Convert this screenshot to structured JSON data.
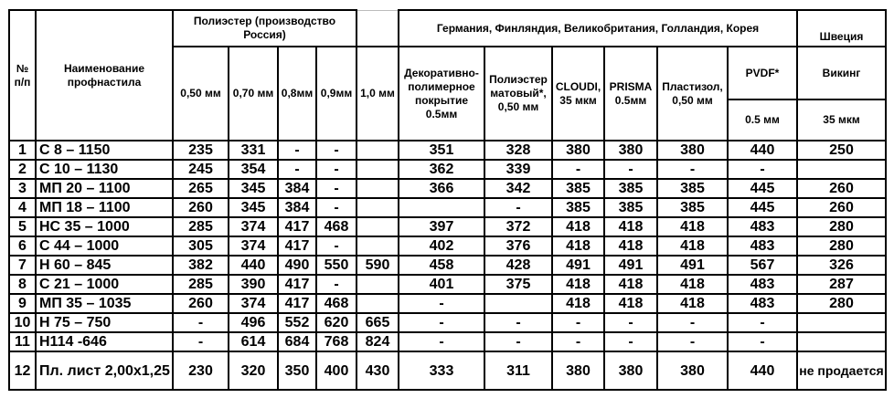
{
  "header": {
    "num": "№ п/п",
    "name": "Наименование профнастила",
    "group_russia": "Полиэстер (производство Россия)",
    "group_import": "Германия, Финляндия, Великобритания, Голландия, Корея",
    "group_sweden": "Швеция",
    "russia_cols": [
      "0,50 мм",
      "0,70 мм",
      "0,8мм",
      "0,9мм",
      "1,0 мм"
    ],
    "import_cols": [
      "Декоративно-полимерное покрытие 0.5мм",
      "Полиэстер матовый*, 0,50 мм",
      "CLOUDI, 35 мкм",
      "PRISMA 0.5мм",
      "Пластизол, 0,50 мм"
    ],
    "pvdf": "PVDF*",
    "pvdf_sub": "0.5 мм",
    "viking": "Викинг",
    "viking_sub": "35 мкм"
  },
  "rows": [
    {
      "n": "1",
      "name": "С 8 – 1150",
      "v": [
        "235",
        "331",
        "-",
        "-",
        "",
        "351",
        "328",
        "380",
        "380",
        "380",
        "440",
        "250"
      ]
    },
    {
      "n": "2",
      "name": "С 10 – 1130",
      "v": [
        "245",
        "354",
        "-",
        "-",
        "",
        "362",
        "339",
        "-",
        "-",
        "-",
        "-",
        ""
      ]
    },
    {
      "n": "3",
      "name": "МП 20 – 1100",
      "v": [
        "265",
        "345",
        "384",
        "-",
        "",
        "366",
        "342",
        "385",
        "385",
        "385",
        "445",
        "260"
      ]
    },
    {
      "n": "4",
      "name": "МП 18 – 1100",
      "v": [
        "260",
        "345",
        "384",
        "-",
        "",
        "",
        "-",
        "385",
        "385",
        "385",
        "445",
        "260"
      ]
    },
    {
      "n": "5",
      "name": "НС 35 – 1000",
      "v": [
        "285",
        "374",
        "417",
        "468",
        "",
        "397",
        "372",
        "418",
        "418",
        "418",
        "483",
        "280"
      ]
    },
    {
      "n": "6",
      "name": "С 44 – 1000",
      "v": [
        "305",
        "374",
        "417",
        "-",
        "",
        "402",
        "376",
        "418",
        "418",
        "418",
        "483",
        "280"
      ]
    },
    {
      "n": "7",
      "name": "Н 60 – 845",
      "v": [
        "382",
        "440",
        "490",
        "550",
        "590",
        "458",
        "428",
        "491",
        "491",
        "491",
        "567",
        "326"
      ]
    },
    {
      "n": "8",
      "name": "С 21 – 1000",
      "v": [
        "285",
        "390",
        "417",
        "-",
        "",
        "401",
        "375",
        "418",
        "418",
        "418",
        "483",
        "287"
      ]
    },
    {
      "n": "9",
      "name": "МП  35 – 1035",
      "v": [
        "260",
        "374",
        "417",
        "468",
        "",
        "-",
        "",
        "418",
        "418",
        "418",
        "483",
        "280"
      ]
    },
    {
      "n": "10",
      "name": "Н 75 – 750",
      "v": [
        "-",
        "496",
        "552",
        "620",
        "665",
        "-",
        "-",
        "-",
        "-",
        "-",
        "-",
        ""
      ]
    },
    {
      "n": "11",
      "name": "Н114 -646",
      "v": [
        "-",
        "614",
        "684",
        "768",
        "824",
        "-",
        "-",
        "-",
        "-",
        "-",
        "-",
        ""
      ]
    },
    {
      "n": "12",
      "name": "Пл. лист 2,00x1,25",
      "v": [
        "230",
        "320",
        "350",
        "400",
        "430",
        "333",
        "311",
        "380",
        "380",
        "380",
        "440",
        "не продается"
      ]
    }
  ]
}
